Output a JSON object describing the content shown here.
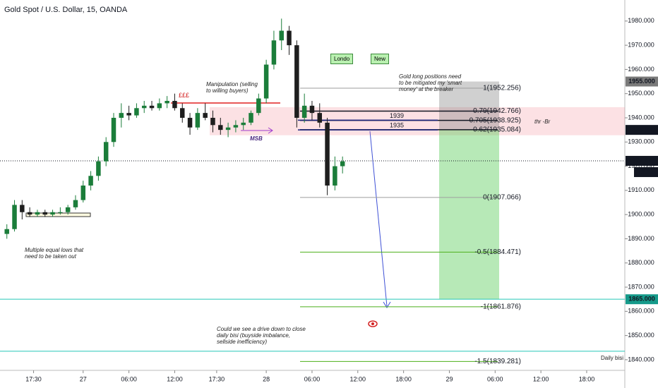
{
  "chart_data": {
    "type": "candlestick",
    "title": "Gold Spot / U.S. Dollar, 15, OANDA",
    "x": [
      -10,
      -9,
      -8,
      -7,
      -6,
      -5,
      -4,
      -3,
      -2,
      -1,
      0,
      1,
      2,
      3,
      4,
      5,
      6,
      7,
      8,
      9,
      10,
      11,
      12,
      13,
      14,
      15,
      16,
      17,
      18,
      19,
      20,
      21,
      22,
      23,
      24,
      25,
      26,
      27,
      28,
      29,
      30,
      31,
      32,
      33,
      34
    ],
    "open": [
      1892,
      1894,
      1904,
      1901,
      1900,
      1901,
      1900,
      1901,
      1901,
      1903,
      1906,
      1912,
      1916,
      1922,
      1930,
      1940,
      1942,
      1941,
      1944,
      1945,
      1944,
      1946,
      1947,
      1944,
      1940,
      1936,
      1942,
      1940,
      1937,
      1935,
      1936,
      1937,
      1938,
      1942,
      1948,
      1962,
      1972,
      1976,
      1970,
      1940,
      1945,
      1942,
      1938,
      1912,
      1920
    ],
    "high": [
      1896,
      1906,
      1906,
      1903,
      1902,
      1902,
      1902,
      1903,
      1904,
      1908,
      1914,
      1918,
      1924,
      1932,
      1942,
      1946,
      1945,
      1946,
      1947,
      1947,
      1948,
      1949,
      1950,
      1946,
      1942,
      1944,
      1946,
      1943,
      1940,
      1938,
      1939,
      1940,
      1943,
      1950,
      1964,
      1976,
      1981,
      1978,
      1972,
      1950,
      1947,
      1946,
      1940,
      1924,
      1924
    ],
    "low": [
      1890,
      1893,
      1898,
      1899,
      1899,
      1899,
      1899,
      1900,
      1900,
      1902,
      1905,
      1910,
      1914,
      1920,
      1928,
      1936,
      1939,
      1940,
      1942,
      1943,
      1943,
      1944,
      1943,
      1938,
      1933,
      1935,
      1939,
      1934,
      1933,
      1932,
      1934,
      1935,
      1937,
      1941,
      1946,
      1960,
      1968,
      1966,
      1936,
      1938,
      1939,
      1936,
      1908,
      1910,
      1917
    ],
    "close": [
      1894,
      1904,
      1901,
      1900,
      1901,
      1900,
      1901,
      1901,
      1903,
      1906,
      1912,
      1916,
      1922,
      1930,
      1940,
      1942,
      1941,
      1944,
      1945,
      1944,
      1946,
      1947,
      1944,
      1940,
      1936,
      1942,
      1940,
      1937,
      1935,
      1936,
      1937,
      1938,
      1942,
      1948,
      1962,
      1972,
      1976,
      1970,
      1940,
      1945,
      1942,
      1938,
      1912,
      1920,
      1922
    ],
    "up_color": "#1b7d3a",
    "down_color": "#1e1e1e",
    "xlim": [
      -10.9,
      71
    ],
    "ylim": [
      1835.6,
      1988.7
    ],
    "xticks": [
      {
        "value": -6.5,
        "label": "17:30"
      },
      {
        "value": 0,
        "label": "27"
      },
      {
        "value": 6,
        "label": "06:00"
      },
      {
        "value": 12,
        "label": "12:00"
      },
      {
        "value": 17.5,
        "label": "17:30"
      },
      {
        "value": 24,
        "label": "28"
      },
      {
        "value": 30,
        "label": "06:00"
      },
      {
        "value": 36,
        "label": "12:00"
      },
      {
        "value": 42,
        "label": "18:00"
      },
      {
        "value": 48,
        "label": "29"
      },
      {
        "value": 54,
        "label": "06:00"
      },
      {
        "value": 60,
        "label": "12:00"
      },
      {
        "value": 66,
        "label": "18:00"
      }
    ],
    "yticks": [
      {
        "value": 1840,
        "label": "1840.000"
      },
      {
        "value": 1850,
        "label": "1850.000"
      },
      {
        "value": 1860,
        "label": "1860.000"
      },
      {
        "value": 1870,
        "label": "1870.000"
      },
      {
        "value": 1880,
        "label": "1880.000"
      },
      {
        "value": 1890,
        "label": "1890.000"
      },
      {
        "value": 1900,
        "label": "1900.000"
      },
      {
        "value": 1910,
        "label": "1910.000"
      },
      {
        "value": 1920,
        "label": "1920.000"
      },
      {
        "value": 1930,
        "label": "1930.000"
      },
      {
        "value": 1940,
        "label": "1940.000"
      },
      {
        "value": 1950,
        "label": "1950.000"
      },
      {
        "value": 1960,
        "label": "1960.000"
      },
      {
        "value": 1970,
        "label": "1970.000"
      },
      {
        "value": 1980,
        "label": "1980.000"
      }
    ],
    "grid": false,
    "price_labels": [
      {
        "value": 1955,
        "label": "1955.000",
        "color": "#7a7a7a"
      },
      {
        "value": 1935,
        "label": "1935.000",
        "color": "#131722"
      },
      {
        "value": 1922.218,
        "label": "1922.218",
        "color": "#131722"
      },
      {
        "value": 1865,
        "label": "1865.000",
        "color": "#159a8a"
      }
    ],
    "countdown": "13:25",
    "zone": [
      1932.8,
      1944.4
    ],
    "support_lines": [
      1865,
      1843.5
    ],
    "fib_levels": [
      {
        "value": 1952.256,
        "label": "1(1952.256)",
        "color": "#9e9e9e"
      },
      {
        "value": 1942.766,
        "label": "0.79(1942.766)",
        "color": "#131722"
      },
      {
        "value": 1938.925,
        "label": "0.705(1938.925)",
        "color": "#131722"
      },
      {
        "value": 1935.084,
        "label": "0.62(1935.084)",
        "color": "#131722"
      },
      {
        "value": 1907.066,
        "label": "0(1907.066)",
        "color": "#9e9e9e"
      },
      {
        "value": 1884.471,
        "label": "-0.5(1884.471)",
        "color": "#4caf1a"
      },
      {
        "value": 1861.876,
        "label": "-1(1861.876)",
        "color": "#4caf1a"
      },
      {
        "value": 1839.281,
        "label": "-1.5(1839.281)",
        "color": "#4caf1a"
      }
    ],
    "marked_levels": [
      1939,
      1935
    ],
    "annotations": {
      "liquidity": "£££",
      "manipulation": "Manipulation (selling to willing buyers)",
      "msb": "MSB",
      "london": "Londo",
      "new_york": "New",
      "breaker": "Gold long positions need to be mitigated my 'smart money' at the breaker",
      "breaker_tag": "thr -Br",
      "equal_lows": "Multiple equal lows that need to be taken out",
      "drive_down": "Could we see a drive down to close daily bisi (buyside imbalance, sellside inefficiency)",
      "daily_bisi": "Daily bisi"
    }
  }
}
